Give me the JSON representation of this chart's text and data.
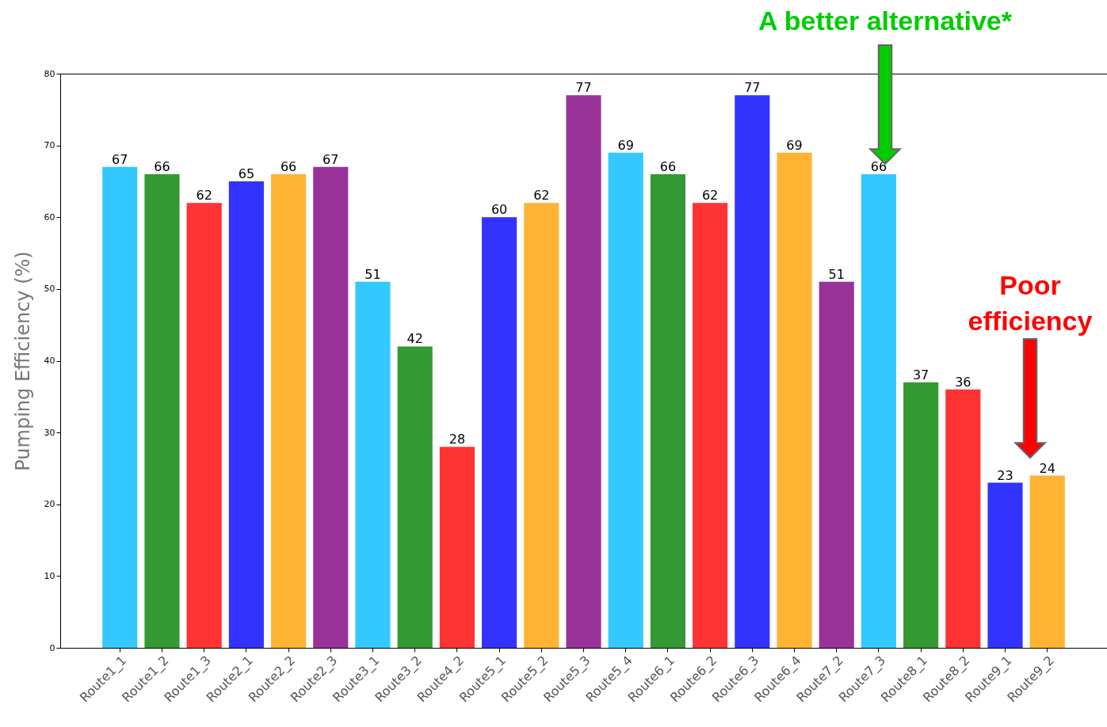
{
  "chart_data": {
    "type": "bar",
    "ylabel": "Pumping Efficiency (%)",
    "categories": [
      "Route1_1",
      "Route1_2",
      "Route1_3",
      "Route2_1",
      "Route2_2",
      "Route2_3",
      "Route3_1",
      "Route3_2",
      "Route4_2",
      "Route5_1",
      "Route5_2",
      "Route5_3",
      "Route5_4",
      "Route6_1",
      "Route6_2",
      "Route6_3",
      "Route6_4",
      "Route7_2",
      "Route7_3",
      "Route8_1",
      "Route8_2",
      "Route9_1",
      "Route9_2"
    ],
    "values": [
      67,
      66,
      62,
      65,
      66,
      67,
      51,
      42,
      28,
      60,
      62,
      77,
      69,
      66,
      62,
      77,
      69,
      51,
      66,
      37,
      36,
      23,
      24
    ],
    "colors": [
      "#33c9ff",
      "#339933",
      "#ff3333",
      "#3333ff",
      "#ffb333",
      "#993399",
      "#33c9ff",
      "#339933",
      "#ff3333",
      "#3333ff",
      "#ffb333",
      "#993399",
      "#33c9ff",
      "#339933",
      "#ff3333",
      "#3333ff",
      "#ffb333",
      "#993399",
      "#33c9ff",
      "#339933",
      "#ff3333",
      "#3333ff",
      "#ffb333"
    ],
    "ylim": [
      0,
      80
    ],
    "yticks": [
      0,
      10,
      20,
      30,
      40,
      50,
      60,
      70,
      80
    ],
    "data_labels": true,
    "annotations": [
      "A better alternative*",
      "Poor\nefficiency"
    ]
  }
}
